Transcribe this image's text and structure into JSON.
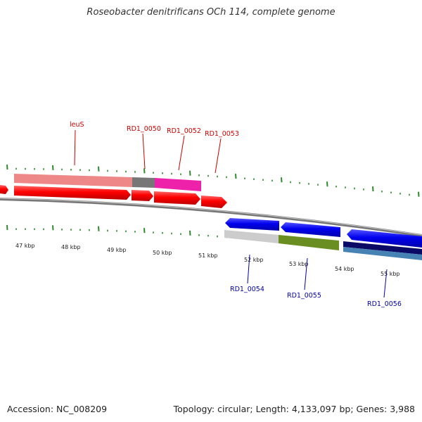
{
  "title": "Roseobacter denitrificans OCh 114, complete genome",
  "footer": {
    "accession": "Accession: NC_008209",
    "summary": "Topology: circular; Length: 4,133,097 bp; Genes: 3,988"
  },
  "colors": {
    "forward_gene_label": "#cc0000",
    "reverse_gene_label": "#0000aa",
    "tick": "#2e8b2e",
    "backbone": "#777777"
  },
  "kbp_labels": [
    "47 kbp",
    "48 kbp",
    "49 kbp",
    "50 kbp",
    "51 kbp",
    "52 kbp",
    "53 kbp",
    "54 kbp",
    "55 kbp"
  ],
  "forward_genes": [
    {
      "label": "leuS",
      "strand": "+",
      "feature_color": "#ee7777"
    },
    {
      "label": "RD1_0050",
      "strand": "+",
      "feature_color": "#777777"
    },
    {
      "label": "RD1_0052",
      "strand": "+",
      "feature_color": "#ee22aa"
    },
    {
      "label": "RD1_0053",
      "strand": "+",
      "feature_color": "#ff0000"
    }
  ],
  "reverse_genes": [
    {
      "label": "RD1_0054",
      "strand": "-",
      "feature_color": "#cccccc"
    },
    {
      "label": "RD1_0055",
      "strand": "-",
      "feature_color": "#6b8e23"
    },
    {
      "label": "RD1_0056",
      "strand": "-",
      "feature_color": "#0000dd"
    }
  ]
}
